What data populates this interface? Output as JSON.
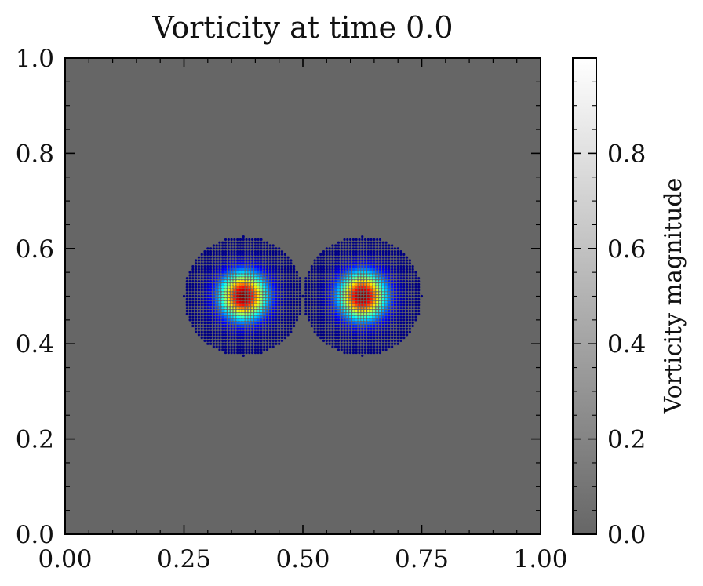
{
  "chart_data": {
    "type": "scatter",
    "title": "Vorticity at time 0.0",
    "xlabel": "",
    "ylabel": "",
    "xlim": [
      0.0,
      1.0
    ],
    "ylim": [
      0.0,
      1.0
    ],
    "x_ticks": [
      "0.00",
      "0.25",
      "0.50",
      "0.75",
      "1.00"
    ],
    "y_ticks": [
      "0.0",
      "0.2",
      "0.4",
      "0.6",
      "0.8",
      "1.0"
    ],
    "grid": false,
    "background_color": "#666666",
    "colorscale": "jet",
    "vortices": [
      {
        "center": [
          0.375,
          0.5
        ],
        "radius": 0.125,
        "peak": 1.0
      },
      {
        "center": [
          0.625,
          0.5
        ],
        "radius": 0.125,
        "peak": 1.0
      }
    ],
    "particle_spacing": 0.00625,
    "colorbar": {
      "label": "Vorticity magnitude",
      "range": [
        0.0,
        1.0
      ],
      "ticks": [
        "0.0",
        "0.2",
        "0.4",
        "0.6",
        "0.8"
      ],
      "tick_values": [
        0.0,
        0.2,
        0.4,
        0.6,
        0.8
      ],
      "color_low": "#666666",
      "color_high": "#ffffff"
    }
  }
}
